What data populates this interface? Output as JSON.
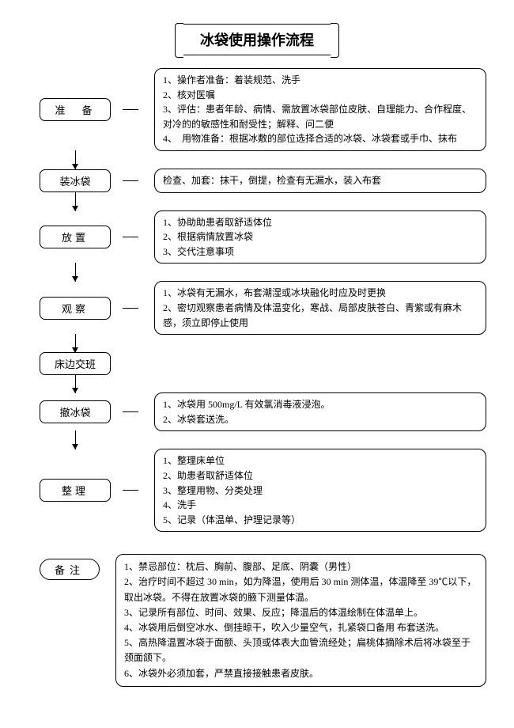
{
  "title": "冰袋使用操作流程",
  "stages": [
    {
      "name": "准　备",
      "lines": [
        "1、操作者准备：着装规范、洗手",
        "2、核对医嘱",
        "3、评估：患者年龄、病情、需放置冰袋部位皮肤、自理能力、合作程度、对冷的的敏感性和耐受性；解释、问二便",
        "4、　用物准备：根据冰敷的部位选择合适的冰袋、冰袋套或手巾、抹布"
      ]
    },
    {
      "name": "装冰袋",
      "lines": [
        "检查、加套：抹干，倒提，检查有无漏水，装入布套"
      ]
    },
    {
      "name": "放置",
      "lines": [
        "1、协助助患者取舒适体位",
        "2、根据病情放置冰袋",
        "3、交代注意事项"
      ]
    },
    {
      "name": "观察",
      "lines": [
        "1、冰袋有无漏水，布套潮湿或冰块融化时应及时更换",
        "2、密切观察患者病情及体温变化，寒战、局部皮肤苍白、青紫或有麻木感，须立即停止使用"
      ]
    },
    {
      "name": "床边交班",
      "lines": null
    },
    {
      "name": "撤冰袋",
      "lines": [
        "1、冰袋用 500mg/L 有效氯消毒液浸泡。",
        "2、冰袋套送洗。"
      ]
    },
    {
      "name": "整理",
      "lines": [
        "1、整理床单位",
        "2、助患者取舒适体位",
        "3、整理用物、分类处理",
        "4、洗手",
        "5、记录（体温单、护理记录等）"
      ]
    }
  ],
  "notes_label": "备注",
  "notes": [
    "1、禁忌部位：枕后、胸前、腹部、足底、阴囊（男性）",
    "2、治疗时间不超过 30 min，如为降温，使用后 30 min 测体温，体温降至 39℃以下，取出冰袋。不得在放置冰袋的腋下测量体温。",
    "3、记录所有部位、时间、效果、反应；降温后的体温绘制在体温单上。",
    "4、冰袋用后倒空冰水、倒挂晾干，吹入少量空气，扎紧袋口备用 布套送洗。",
    "5、高热降温置冰袋于面额、头顶或体表大血管流经处；扁桃体摘除术后将冰袋至于颈面颌下。",
    "6、冰袋外必须加套，严禁直接接触患者皮肤。"
  ],
  "style": {
    "type": "flowchart",
    "background_color": "#ffffff",
    "border_color": "#000000",
    "font_family": "SimSun",
    "title_fontsize": 18,
    "stage_fontsize": 13,
    "body_fontsize": 12,
    "box_radius": 10,
    "stage_radius": 7
  }
}
